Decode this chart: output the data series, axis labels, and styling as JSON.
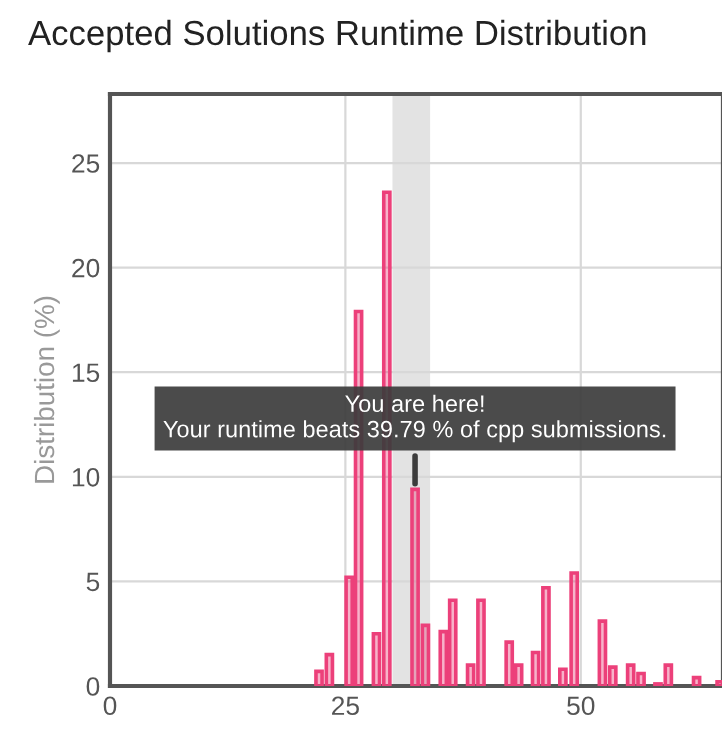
{
  "chart_data": {
    "type": "bar",
    "title": "Accepted Solutions Runtime Distribution",
    "ylabel": "Distribution (%)",
    "x": [
      22.2,
      23.3,
      25.4,
      26.4,
      28.3,
      29.4,
      32.4,
      33.5,
      35.4,
      36.4,
      38.3,
      39.4,
      42.4,
      43.4,
      45.2,
      46.3,
      48.1,
      49.3,
      52.3,
      53.4,
      55.3,
      56.4,
      58.2,
      59.3,
      62.3,
      64.8
    ],
    "values": [
      0.7,
      1.5,
      5.2,
      17.9,
      2.5,
      23.6,
      9.4,
      2.9,
      2.6,
      4.1,
      1.0,
      4.1,
      2.1,
      1.0,
      1.6,
      4.7,
      0.8,
      5.4,
      3.1,
      0.9,
      1.0,
      0.6,
      0.1,
      1.0,
      0.4,
      0.2
    ],
    "color": "#ec407a",
    "xlim": [
      0,
      65
    ],
    "ylim": [
      0,
      28.3
    ],
    "xticks": [
      0,
      25,
      50
    ],
    "yticks": [
      0,
      5,
      10,
      15,
      20,
      25
    ],
    "grid": true,
    "bands": [
      {
        "axis": "x",
        "from": 30,
        "to": 34,
        "color": "#e3e3e3"
      }
    ],
    "annotations": [
      {
        "text": "You are here!\nYour runtime beats 39.79 % of cpp submissions.",
        "x": 32.4,
        "y": 9.4
      }
    ]
  }
}
